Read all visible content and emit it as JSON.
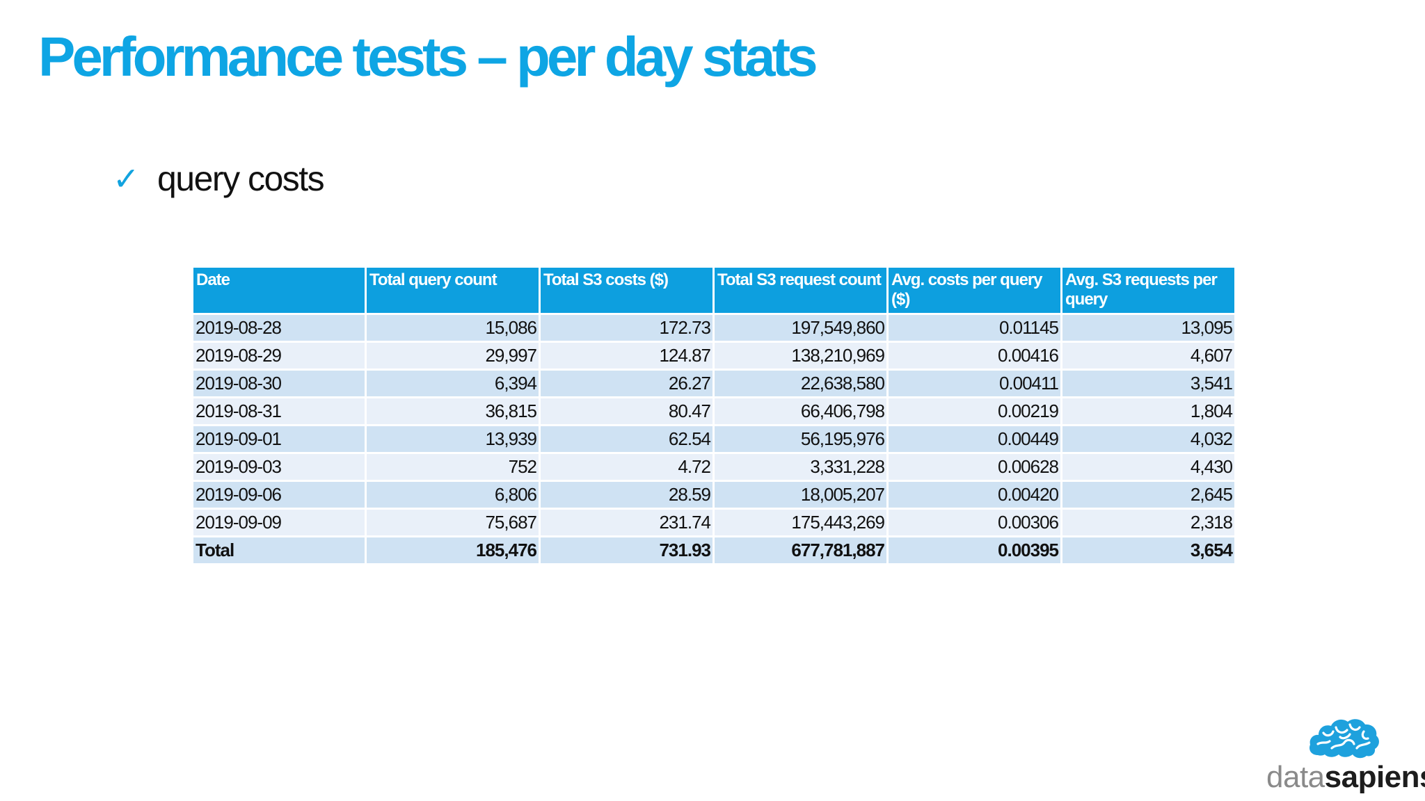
{
  "slide": {
    "title": "Performance tests – per day stats",
    "bullet_icon": "check-mark-icon",
    "bullet_text": "query costs"
  },
  "table": {
    "headers": [
      "Date",
      "Total query count",
      "Total S3 costs ($)",
      "Total S3 request count",
      "Avg. costs per query ($)",
      "Avg. S3 requests per query"
    ],
    "rows": [
      [
        "2019-08-28",
        "15,086",
        "172.73",
        "197,549,860",
        "0.01145",
        "13,095"
      ],
      [
        "2019-08-29",
        "29,997",
        "124.87",
        "138,210,969",
        "0.00416",
        "4,607"
      ],
      [
        "2019-08-30",
        "6,394",
        "26.27",
        "22,638,580",
        "0.00411",
        "3,541"
      ],
      [
        "2019-08-31",
        "36,815",
        "80.47",
        "66,406,798",
        "0.00219",
        "1,804"
      ],
      [
        "2019-09-01",
        "13,939",
        "62.54",
        "56,195,976",
        "0.00449",
        "4,032"
      ],
      [
        "2019-09-03",
        "752",
        "4.72",
        "3,331,228",
        "0.00628",
        "4,430"
      ],
      [
        "2019-09-06",
        "6,806",
        "28.59",
        "18,005,207",
        "0.00420",
        "2,645"
      ],
      [
        "2019-09-09",
        "75,687",
        "231.74",
        "175,443,269",
        "0.00306",
        "2,318"
      ]
    ],
    "total": [
      "Total",
      "185,476",
      "731.93",
      "677,781,887",
      "0.00395",
      "3,654"
    ]
  },
  "logo": {
    "icon": "brain-cloud-icon",
    "text_light": "data",
    "text_bold": "sapiens"
  },
  "colors": {
    "accent": "#0ea5e4",
    "header_bg": "#0d9fdf",
    "row_dark": "#cfe2f3",
    "row_light": "#e9f0f9"
  }
}
